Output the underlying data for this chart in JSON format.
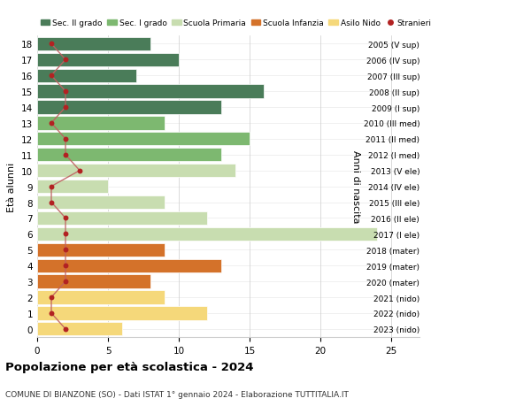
{
  "ages": [
    18,
    17,
    16,
    15,
    14,
    13,
    12,
    11,
    10,
    9,
    8,
    7,
    6,
    5,
    4,
    3,
    2,
    1,
    0
  ],
  "right_labels_by_age": {
    "18": "2005 (V sup)",
    "17": "2006 (IV sup)",
    "16": "2007 (III sup)",
    "15": "2008 (II sup)",
    "14": "2009 (I sup)",
    "13": "2010 (III med)",
    "12": "2011 (II med)",
    "11": "2012 (I med)",
    "10": "2013 (V ele)",
    "9": "2014 (IV ele)",
    "8": "2015 (III ele)",
    "7": "2016 (II ele)",
    "6": "2017 (I ele)",
    "5": "2018 (mater)",
    "4": "2019 (mater)",
    "3": "2020 (mater)",
    "2": "2021 (nido)",
    "1": "2022 (nido)",
    "0": "2023 (nido)"
  },
  "bar_values_by_age": {
    "18": 8,
    "17": 10,
    "16": 7,
    "15": 16,
    "14": 13,
    "13": 9,
    "12": 15,
    "11": 13,
    "10": 14,
    "9": 5,
    "8": 9,
    "7": 12,
    "6": 24,
    "5": 9,
    "4": 13,
    "3": 8,
    "2": 9,
    "1": 12,
    "0": 6
  },
  "stranieri_by_age": {
    "18": 1,
    "17": 2,
    "16": 1,
    "15": 2,
    "14": 2,
    "13": 1,
    "12": 2,
    "11": 2,
    "10": 3,
    "9": 1,
    "8": 1,
    "7": 2,
    "6": 2,
    "5": 2,
    "4": 2,
    "3": 2,
    "2": 1,
    "1": 1,
    "0": 2
  },
  "bar_colors_by_age": {
    "18": "#4a7c59",
    "17": "#4a7c59",
    "16": "#4a7c59",
    "15": "#4a7c59",
    "14": "#4a7c59",
    "13": "#7db870",
    "12": "#7db870",
    "11": "#7db870",
    "10": "#c8ddb0",
    "9": "#c8ddb0",
    "8": "#c8ddb0",
    "7": "#c8ddb0",
    "6": "#c8ddb0",
    "5": "#d4722a",
    "4": "#d4722a",
    "3": "#d4722a",
    "2": "#f5d87a",
    "1": "#f5d87a",
    "0": "#f5d87a"
  },
  "legend_labels": [
    "Sec. II grado",
    "Sec. I grado",
    "Scuola Primaria",
    "Scuola Infanzia",
    "Asilo Nido",
    "Stranieri"
  ],
  "legend_colors": [
    "#4a7c59",
    "#7db870",
    "#c8ddb0",
    "#d4722a",
    "#f5d87a",
    "#b22222"
  ],
  "title": "Popolazione per età scolastica - 2024",
  "subtitle": "COMUNE DI BIANZONE (SO) - Dati ISTAT 1° gennaio 2024 - Elaborazione TUTTITALIA.IT",
  "ylabel": "Età alunni",
  "right_ylabel": "Anni di nascita",
  "xlim": [
    0,
    27
  ],
  "xticks": [
    0,
    5,
    10,
    15,
    20,
    25
  ],
  "background_color": "#ffffff",
  "grid_color": "#cccccc",
  "stranieri_color": "#b22222",
  "stranieri_line_color": "#c06060"
}
